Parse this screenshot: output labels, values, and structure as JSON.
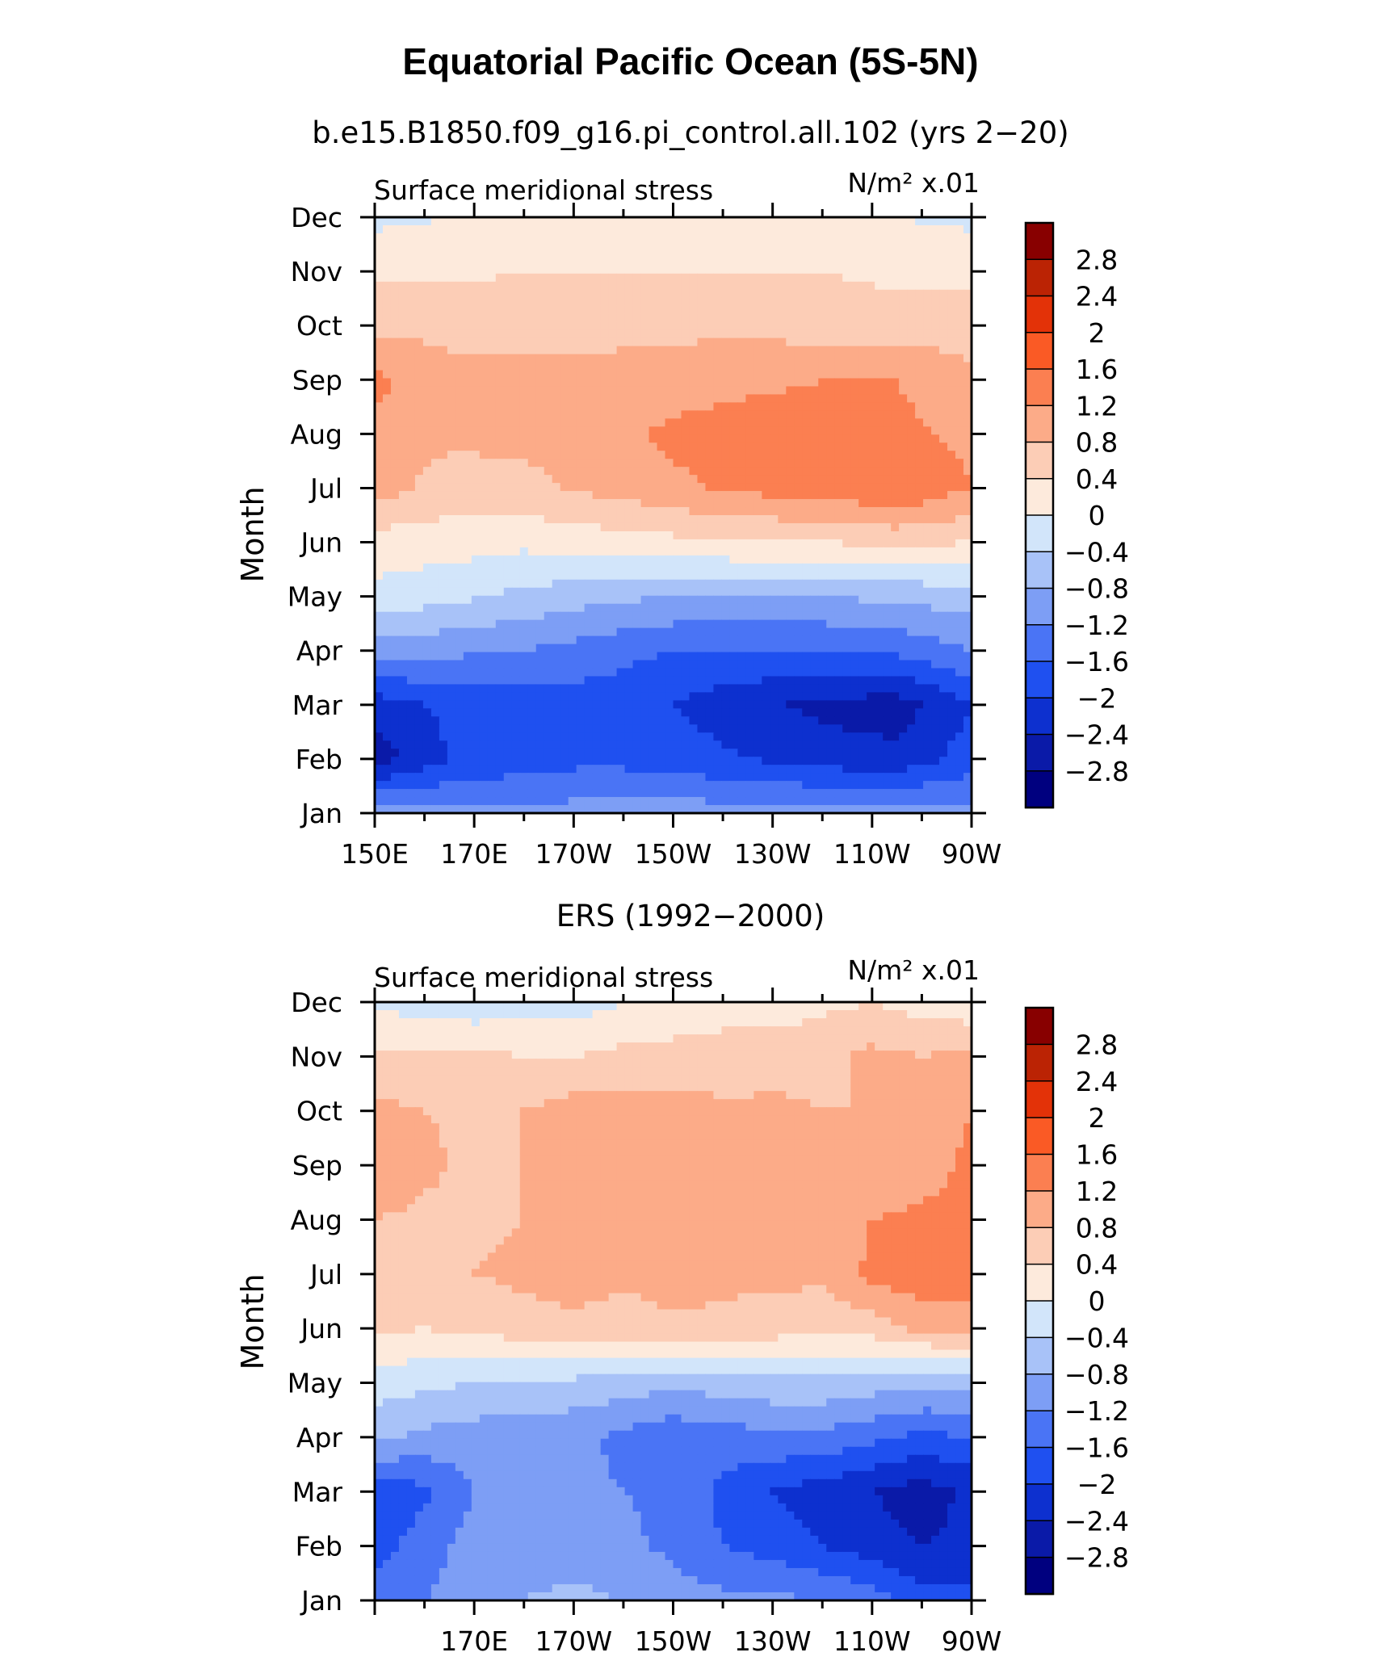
{
  "title": "Equatorial Pacific Ocean (5S-5N)",
  "colors": [
    "#00007f",
    "#0a1aa8",
    "#0d30cf",
    "#1f50f0",
    "#4a74f5",
    "#7d9ef5",
    "#a8c2f8",
    "#d2e5fa",
    "#fdeadc",
    "#fccdb6",
    "#fcab88",
    "#fb7f51",
    "#fa5a25",
    "#e33208",
    "#bb2304",
    "#880000"
  ],
  "colorbar": {
    "labels": [
      "2.8",
      "2.4",
      "2",
      "1.6",
      "1.2",
      "0.8",
      "0.4",
      "0",
      "−0.4",
      "−0.8",
      "−1.2",
      "−1.6",
      "−2",
      "−2.4",
      "−2.8"
    ]
  },
  "chart_data": [
    {
      "type": "heatmap",
      "subtitle": "b.e15.B1850.f09_g16.pi_control.all.102 (yrs 2−20)",
      "left_string": "Surface meridional stress",
      "right_string": "N/m² x.01",
      "ylabel": "Month",
      "x_tick_labels": [
        "150E",
        "170E",
        "170W",
        "150W",
        "130W",
        "110W",
        "90W"
      ],
      "y_tick_labels": [
        "Jan",
        "Feb",
        "Mar",
        "Apr",
        "May",
        "Jun",
        "Jul",
        "Aug",
        "Sep",
        "Oct",
        "Nov",
        "Dec"
      ],
      "x": [
        150,
        165,
        180,
        195,
        210,
        225,
        240,
        255,
        270
      ],
      "y": [
        1,
        2,
        3,
        4,
        5,
        6,
        7,
        8,
        9,
        10,
        11,
        12
      ],
      "values": [
        [
          -1.0,
          -1.1,
          -1.1,
          -1.0,
          -1.0,
          -1.0,
          -1.0,
          -1.0,
          -1.1
        ],
        [
          -2.6,
          -2.0,
          -1.8,
          -1.7,
          -1.8,
          -2.0,
          -2.2,
          -2.3,
          -1.8
        ],
        [
          -2.2,
          -1.9,
          -1.8,
          -1.8,
          -2.0,
          -2.3,
          -2.5,
          -2.6,
          -2.0
        ],
        [
          -1.0,
          -1.1,
          -1.2,
          -1.4,
          -1.6,
          -1.6,
          -1.6,
          -1.5,
          -1.2
        ],
        [
          -0.1,
          -0.3,
          -0.5,
          -0.7,
          -0.8,
          -0.8,
          -0.8,
          -0.7,
          -0.6
        ],
        [
          0.2,
          0.2,
          0.1,
          0.2,
          0.3,
          0.4,
          0.4,
          0.5,
          0.4
        ],
        [
          1.0,
          0.6,
          0.7,
          0.9,
          1.1,
          1.3,
          1.4,
          1.6,
          1.2
        ],
        [
          1.1,
          0.9,
          0.9,
          1.0,
          1.3,
          1.4,
          1.4,
          1.3,
          1.1
        ],
        [
          1.3,
          0.9,
          0.9,
          0.9,
          1.0,
          1.1,
          1.2,
          1.2,
          0.9
        ],
        [
          0.7,
          0.7,
          0.7,
          0.7,
          0.7,
          0.7,
          0.6,
          0.6,
          0.6
        ],
        [
          0.3,
          0.3,
          0.4,
          0.4,
          0.4,
          0.4,
          0.4,
          0.3,
          0.3
        ],
        [
          -0.1,
          0.0,
          0.1,
          0.1,
          0.1,
          0.1,
          0.1,
          0.0,
          -0.1
        ]
      ],
      "xlim": [
        150,
        270
      ],
      "ylim": [
        1,
        12
      ]
    },
    {
      "type": "heatmap",
      "subtitle": "ERS (1992−2000)",
      "left_string": "Surface meridional stress",
      "right_string": "N/m² x.01",
      "ylabel": "Month",
      "x_tick_labels": [
        "170E",
        "170W",
        "150W",
        "130W",
        "110W",
        "90W"
      ],
      "y_tick_labels": [
        "Jan",
        "Feb",
        "Mar",
        "Apr",
        "May",
        "Jun",
        "Jul",
        "Aug",
        "Sep",
        "Oct",
        "Nov",
        "Dec"
      ],
      "x": [
        150,
        160,
        170,
        180,
        190,
        200,
        210,
        220,
        230,
        240,
        250,
        260,
        270
      ],
      "y": [
        1,
        2,
        3,
        4,
        5,
        6,
        7,
        8,
        9,
        10,
        11,
        12
      ],
      "values": [
        [
          -1.3,
          -1.2,
          -1.0,
          -0.8,
          -0.7,
          -0.8,
          -1.0,
          -1.1,
          -1.1,
          -1.2,
          -1.4,
          -1.8,
          -1.9
        ],
        [
          -1.8,
          -1.4,
          -1.0,
          -1.0,
          -1.0,
          -1.1,
          -1.3,
          -1.6,
          -1.8,
          -2.0,
          -2.2,
          -2.4,
          -2.3
        ],
        [
          -1.9,
          -1.7,
          -1.2,
          -1.0,
          -1.1,
          -1.2,
          -1.3,
          -1.7,
          -2.0,
          -2.2,
          -2.4,
          -2.6,
          -2.3
        ],
        [
          -0.7,
          -0.9,
          -1.0,
          -1.1,
          -1.1,
          -1.3,
          -1.5,
          -1.4,
          -1.3,
          -1.3,
          -1.5,
          -1.7,
          -1.6
        ],
        [
          -0.2,
          -0.3,
          -0.4,
          -0.4,
          -0.5,
          -0.6,
          -0.7,
          -0.6,
          -0.5,
          -0.5,
          -0.6,
          -0.7,
          -0.7
        ],
        [
          0.5,
          0.4,
          0.5,
          0.6,
          0.7,
          0.6,
          0.7,
          0.7,
          0.6,
          0.5,
          0.6,
          0.9,
          1.0
        ],
        [
          0.7,
          0.6,
          0.8,
          0.9,
          1.0,
          0.9,
          1.0,
          0.9,
          0.9,
          0.9,
          1.3,
          1.5,
          1.4
        ],
        [
          0.8,
          0.7,
          0.7,
          0.8,
          1.0,
          1.0,
          1.0,
          1.0,
          1.0,
          0.9,
          1.2,
          1.3,
          1.3
        ],
        [
          1.2,
          0.9,
          0.7,
          0.8,
          0.9,
          1.0,
          1.0,
          1.0,
          1.0,
          0.8,
          0.9,
          1.0,
          1.3
        ],
        [
          0.9,
          0.8,
          0.7,
          0.8,
          1.0,
          1.0,
          1.0,
          0.9,
          0.9,
          0.8,
          0.8,
          0.9,
          1.2
        ],
        [
          0.5,
          0.5,
          0.5,
          0.4,
          0.4,
          0.5,
          0.5,
          0.5,
          0.6,
          0.7,
          0.9,
          0.8,
          0.9
        ],
        [
          -0.1,
          -0.2,
          -0.3,
          -0.2,
          -0.2,
          0.0,
          0.2,
          0.3,
          0.2,
          0.3,
          0.4,
          0.2,
          0.1
        ]
      ],
      "xlim": [
        150,
        270
      ],
      "ylim": [
        1,
        12
      ]
    }
  ]
}
